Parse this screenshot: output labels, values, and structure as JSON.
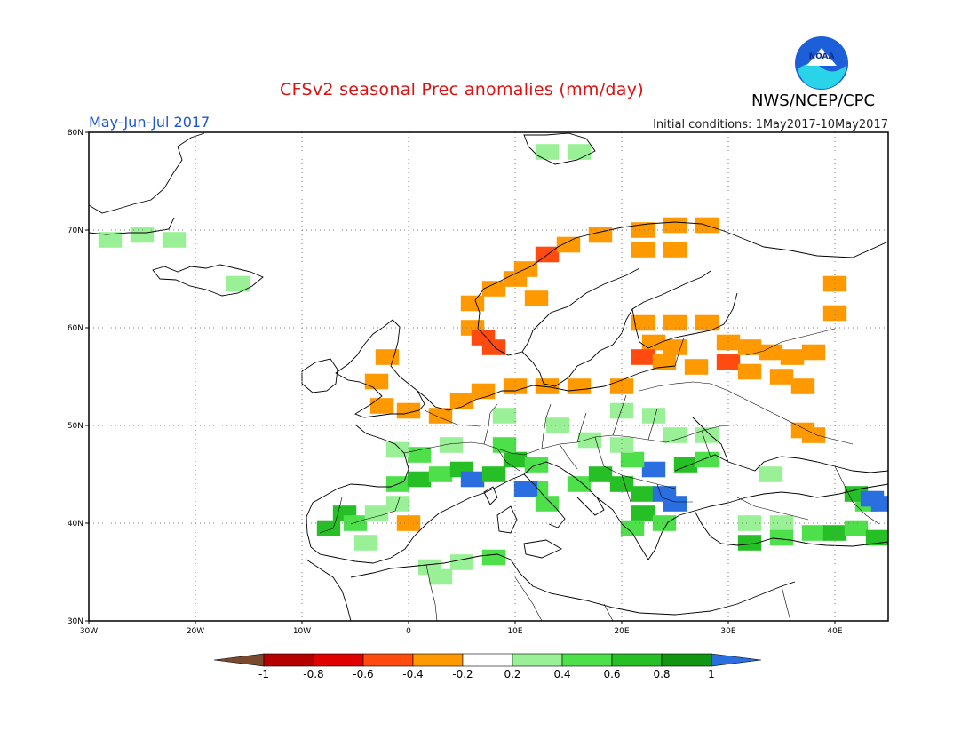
{
  "title": "CFSv2 seasonal Prec anomalies (mm/day)",
  "period": "May-Jun-Jul 2017",
  "initial_conditions": "Initial conditions: 1May2017-10May2017",
  "agency": "NWS/NCEP/CPC",
  "logo_text": "NOAA",
  "map": {
    "lon_range": [
      -30,
      45
    ],
    "lat_range": [
      30,
      80
    ],
    "lat_ticks": [
      "30N",
      "40N",
      "50N",
      "60N",
      "70N",
      "80N"
    ],
    "lon_ticks": [
      "30W",
      "20W",
      "10W",
      "0",
      "10E",
      "20E",
      "30E",
      "40E"
    ],
    "units": "mm/day"
  },
  "colorbar": {
    "labels": [
      "-1",
      "-0.8",
      "-0.6",
      "-0.4",
      "-0.2",
      "0.2",
      "0.4",
      "0.6",
      "0.8",
      "1"
    ],
    "colors": [
      "#7a4a2e",
      "#b50000",
      "#e00000",
      "#ff4a10",
      "#ff9900",
      "#ffffff",
      "#9af096",
      "#4ee04a",
      "#26c026",
      "#129612",
      "#2a6ee0"
    ]
  },
  "anomaly_cells": [
    {
      "lon": -28,
      "lat": 69,
      "v": 0.3
    },
    {
      "lon": -25,
      "lat": 69.5,
      "v": 0.3
    },
    {
      "lon": -22,
      "lat": 69,
      "v": 0.3
    },
    {
      "lon": -16,
      "lat": 64.5,
      "v": 0.3
    },
    {
      "lon": 13,
      "lat": 78,
      "v": 0.3
    },
    {
      "lon": 16,
      "lat": 78,
      "v": 0.3
    },
    {
      "lon": 11,
      "lat": 66,
      "v": -0.3
    },
    {
      "lon": 13,
      "lat": 67.5,
      "v": -0.5
    },
    {
      "lon": 15,
      "lat": 68.5,
      "v": -0.3
    },
    {
      "lon": 18,
      "lat": 69.5,
      "v": -0.3
    },
    {
      "lon": 22,
      "lat": 70,
      "v": -0.3
    },
    {
      "lon": 25,
      "lat": 70.5,
      "v": -0.3
    },
    {
      "lon": 28,
      "lat": 70.5,
      "v": -0.3
    },
    {
      "lon": 22,
      "lat": 68,
      "v": -0.3
    },
    {
      "lon": 25,
      "lat": 68,
      "v": -0.3
    },
    {
      "lon": 6,
      "lat": 62.5,
      "v": -0.3
    },
    {
      "lon": 8,
      "lat": 64,
      "v": -0.3
    },
    {
      "lon": 10,
      "lat": 65,
      "v": -0.3
    },
    {
      "lon": 12,
      "lat": 63,
      "v": -0.3
    },
    {
      "lon": 6,
      "lat": 60,
      "v": -0.3
    },
    {
      "lon": 7,
      "lat": 59,
      "v": -0.5
    },
    {
      "lon": 8,
      "lat": 58,
      "v": -0.5
    },
    {
      "lon": 22,
      "lat": 60.5,
      "v": -0.3
    },
    {
      "lon": 25,
      "lat": 60.5,
      "v": -0.3
    },
    {
      "lon": 28,
      "lat": 60.5,
      "v": -0.3
    },
    {
      "lon": 23,
      "lat": 58.5,
      "v": -0.3
    },
    {
      "lon": 25,
      "lat": 58,
      "v": -0.3
    },
    {
      "lon": 22,
      "lat": 57,
      "v": -0.5
    },
    {
      "lon": 24,
      "lat": 56.5,
      "v": -0.3
    },
    {
      "lon": 27,
      "lat": 56,
      "v": -0.3
    },
    {
      "lon": 30,
      "lat": 56.5,
      "v": -0.5
    },
    {
      "lon": 30,
      "lat": 58.5,
      "v": -0.3
    },
    {
      "lon": 32,
      "lat": 58,
      "v": -0.3
    },
    {
      "lon": 34,
      "lat": 57.5,
      "v": -0.3
    },
    {
      "lon": 36,
      "lat": 57,
      "v": -0.3
    },
    {
      "lon": 38,
      "lat": 57.5,
      "v": -0.3
    },
    {
      "lon": 32,
      "lat": 55.5,
      "v": -0.3
    },
    {
      "lon": 35,
      "lat": 55,
      "v": -0.3
    },
    {
      "lon": 37,
      "lat": 54,
      "v": -0.3
    },
    {
      "lon": 40,
      "lat": 61.5,
      "v": -0.3
    },
    {
      "lon": 40,
      "lat": 64.5,
      "v": -0.3
    },
    {
      "lon": 37,
      "lat": 49.5,
      "v": -0.3
    },
    {
      "lon": 38,
      "lat": 49,
      "v": -0.3
    },
    {
      "lon": -2.5,
      "lat": 52,
      "v": -0.3
    },
    {
      "lon": 0,
      "lat": 51.5,
      "v": -0.3
    },
    {
      "lon": 3,
      "lat": 51,
      "v": -0.3
    },
    {
      "lon": 5,
      "lat": 52.5,
      "v": -0.3
    },
    {
      "lon": 7,
      "lat": 53.5,
      "v": -0.3
    },
    {
      "lon": 10,
      "lat": 54,
      "v": -0.3
    },
    {
      "lon": 13,
      "lat": 54,
      "v": -0.3
    },
    {
      "lon": 16,
      "lat": 54,
      "v": -0.3
    },
    {
      "lon": 20,
      "lat": 54,
      "v": -0.3
    },
    {
      "lon": -3,
      "lat": 54.5,
      "v": -0.3
    },
    {
      "lon": -2,
      "lat": 57,
      "v": -0.3
    },
    {
      "lon": 0,
      "lat": 40,
      "v": -0.3
    },
    {
      "lon": -6,
      "lat": 41,
      "v": 0.6
    },
    {
      "lon": -7.5,
      "lat": 39.5,
      "v": 0.7
    },
    {
      "lon": -5,
      "lat": 40,
      "v": 0.4
    },
    {
      "lon": -3,
      "lat": 41,
      "v": 0.3
    },
    {
      "lon": -1,
      "lat": 42,
      "v": 0.3
    },
    {
      "lon": -4,
      "lat": 38,
      "v": 0.3
    },
    {
      "lon": -1,
      "lat": 44,
      "v": 0.4
    },
    {
      "lon": 1,
      "lat": 44.5,
      "v": 0.6
    },
    {
      "lon": 3,
      "lat": 45,
      "v": 0.5
    },
    {
      "lon": 1,
      "lat": 47,
      "v": 0.4
    },
    {
      "lon": -1,
      "lat": 47.5,
      "v": 0.3
    },
    {
      "lon": 4,
      "lat": 48,
      "v": 0.3
    },
    {
      "lon": 5,
      "lat": 45.5,
      "v": 0.6
    },
    {
      "lon": 6,
      "lat": 44.5,
      "v": 1.0
    },
    {
      "lon": 8,
      "lat": 45,
      "v": 0.7
    },
    {
      "lon": 10,
      "lat": 46.5,
      "v": 0.6
    },
    {
      "lon": 12,
      "lat": 46,
      "v": 0.5
    },
    {
      "lon": 9,
      "lat": 48,
      "v": 0.4
    },
    {
      "lon": 12,
      "lat": 43.5,
      "v": 0.4
    },
    {
      "lon": 11,
      "lat": 43.5,
      "v": 1.0
    },
    {
      "lon": 13,
      "lat": 42,
      "v": 0.4
    },
    {
      "lon": 16,
      "lat": 44,
      "v": 0.5
    },
    {
      "lon": 18,
      "lat": 45,
      "v": 0.6
    },
    {
      "lon": 20,
      "lat": 44,
      "v": 0.7
    },
    {
      "lon": 22,
      "lat": 43,
      "v": 0.6
    },
    {
      "lon": 24,
      "lat": 43,
      "v": 1.0
    },
    {
      "lon": 25,
      "lat": 42,
      "v": 1.0
    },
    {
      "lon": 23,
      "lat": 45.5,
      "v": 1.0
    },
    {
      "lon": 26,
      "lat": 46,
      "v": 0.6
    },
    {
      "lon": 28,
      "lat": 46.5,
      "v": 0.5
    },
    {
      "lon": 21,
      "lat": 46.5,
      "v": 0.4
    },
    {
      "lon": 20,
      "lat": 48,
      "v": 0.3
    },
    {
      "lon": 17,
      "lat": 48.5,
      "v": 0.3
    },
    {
      "lon": 22,
      "lat": 41,
      "v": 0.6
    },
    {
      "lon": 21,
      "lat": 39.5,
      "v": 0.4
    },
    {
      "lon": 24,
      "lat": 40,
      "v": 0.5
    },
    {
      "lon": 20,
      "lat": 51.5,
      "v": 0.3
    },
    {
      "lon": 23,
      "lat": 51,
      "v": 0.3
    },
    {
      "lon": 25,
      "lat": 49,
      "v": 0.3
    },
    {
      "lon": 28,
      "lat": 49,
      "v": 0.3
    },
    {
      "lon": 14,
      "lat": 50,
      "v": 0.3
    },
    {
      "lon": 9,
      "lat": 51,
      "v": 0.3
    },
    {
      "lon": 32,
      "lat": 40,
      "v": 0.3
    },
    {
      "lon": 35,
      "lat": 40,
      "v": 0.3
    },
    {
      "lon": 32,
      "lat": 38,
      "v": 0.6
    },
    {
      "lon": 35,
      "lat": 38.5,
      "v": 0.4
    },
    {
      "lon": 38,
      "lat": 39,
      "v": 0.4
    },
    {
      "lon": 40,
      "lat": 39,
      "v": 0.6
    },
    {
      "lon": 42,
      "lat": 39.5,
      "v": 0.5
    },
    {
      "lon": 44,
      "lat": 38.5,
      "v": 0.6
    },
    {
      "lon": 43,
      "lat": 42,
      "v": 0.5
    },
    {
      "lon": 42,
      "lat": 43,
      "v": 0.6
    },
    {
      "lon": 43.5,
      "lat": 42.5,
      "v": 1.0
    },
    {
      "lon": 44.5,
      "lat": 42,
      "v": 1.0
    },
    {
      "lon": 34,
      "lat": 45,
      "v": 0.3
    },
    {
      "lon": 2,
      "lat": 35.5,
      "v": 0.3
    },
    {
      "lon": 5,
      "lat": 36,
      "v": 0.3
    },
    {
      "lon": 8,
      "lat": 36.5,
      "v": 0.4
    },
    {
      "lon": 3,
      "lat": 34.5,
      "v": 0.3
    }
  ]
}
